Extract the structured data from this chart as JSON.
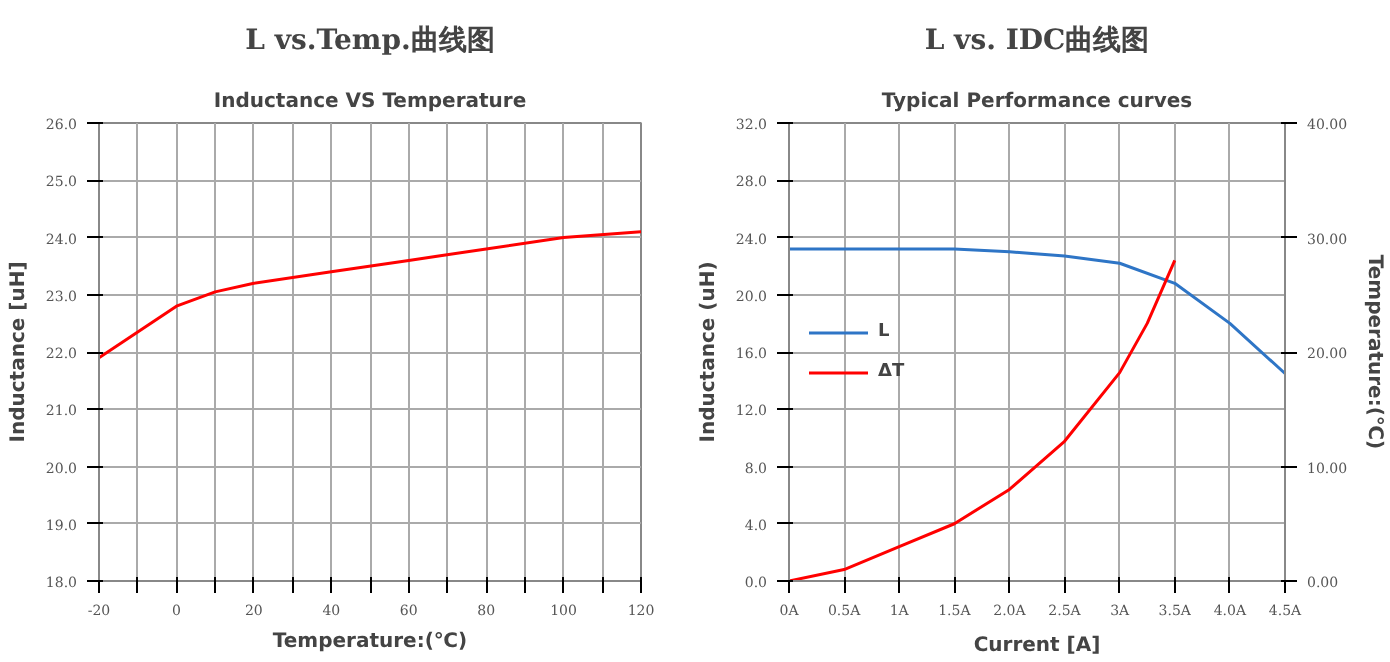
{
  "chart_data": [
    {
      "type": "line",
      "title": "Inductance VS Temperature",
      "annotations": [
        "L vs.Temp.曲线图"
      ],
      "xlabel": "Temperature:(℃)",
      "ylabel": "Inductance [uH]",
      "x": [
        -20,
        -10,
        0,
        10,
        20,
        40,
        60,
        80,
        100,
        120
      ],
      "series": [
        {
          "color": "#ff0000",
          "values": [
            21.9,
            22.35,
            22.8,
            23.05,
            23.2,
            23.4,
            23.6,
            23.8,
            24.0,
            24.1
          ]
        }
      ],
      "xlim": [
        -20,
        120
      ],
      "xticks": [
        -20,
        {
          "value": -10,
          "label": null
        },
        0,
        {
          "value": 10,
          "label": null
        },
        20,
        {
          "value": 30,
          "label": null
        },
        40,
        {
          "value": 50,
          "label": null
        },
        60,
        {
          "value": 70,
          "label": null
        },
        80,
        {
          "value": 90,
          "label": null
        },
        100,
        {
          "value": 110,
          "label": null
        },
        120
      ],
      "ylim": [
        18,
        26
      ],
      "yticks": [
        {
          "value": 18,
          "label": "18.0"
        },
        {
          "value": 19,
          "label": "19.0"
        },
        {
          "value": 20,
          "label": "20.0"
        },
        {
          "value": 21,
          "label": "21.0"
        },
        {
          "value": 22,
          "label": "22.0"
        },
        {
          "value": 23,
          "label": "23.0"
        },
        {
          "value": 24,
          "label": "24.0"
        },
        {
          "value": 25,
          "label": "25.0"
        },
        {
          "value": 26,
          "label": "26.0"
        }
      ],
      "grid": true
    },
    {
      "type": "line",
      "title": "Typical Performance curves",
      "annotations": [
        "L vs. IDC曲线图"
      ],
      "xlabel": "Current [A]",
      "ylabel": "Inductance (uH)",
      "y2label": "Temperature:(℃)",
      "x": [
        0,
        0.5,
        1,
        1.5,
        2,
        2.5,
        3,
        3.5,
        4,
        4.5
      ],
      "series": [
        {
          "name": "L",
          "color": "#2e75c6",
          "values": [
            23.2,
            23.2,
            23.2,
            23.2,
            23.0,
            22.7,
            22.2,
            20.8,
            18.0,
            14.5
          ]
        },
        {
          "name": "ΔT",
          "color": "#ff0000",
          "axis": "y2",
          "x": [
            0,
            0.5,
            1,
            1.5,
            2,
            2.5,
            3,
            3.25,
            3.5
          ],
          "values": [
            0,
            1.0,
            3.0,
            5.0,
            8.0,
            12.2,
            18.2,
            22.5,
            28.0
          ]
        }
      ],
      "xlim": [
        0,
        4.5
      ],
      "xticks": [
        {
          "value": 0,
          "label": "0A"
        },
        {
          "value": 0.5,
          "label": "0.5A"
        },
        {
          "value": 1,
          "label": "1A"
        },
        {
          "value": 1.5,
          "label": "1.5A"
        },
        {
          "value": 2,
          "label": "2.0A"
        },
        {
          "value": 2.5,
          "label": "2.5A"
        },
        {
          "value": 3,
          "label": "3A"
        },
        {
          "value": 3.5,
          "label": "3.5A"
        },
        {
          "value": 4,
          "label": "4.0A"
        },
        {
          "value": 4.5,
          "label": "4.5A"
        }
      ],
      "ylim": [
        0,
        32
      ],
      "yticks": [
        {
          "value": 0,
          "label": "0.0"
        },
        {
          "value": 4,
          "label": "4.0"
        },
        {
          "value": 8,
          "label": "8.0"
        },
        {
          "value": 12,
          "label": "12.0"
        },
        {
          "value": 16,
          "label": "16.0"
        },
        {
          "value": 20,
          "label": "20.0"
        },
        {
          "value": 24,
          "label": "24.0"
        },
        {
          "value": 28,
          "label": "28.0"
        },
        {
          "value": 32,
          "label": "32.0"
        }
      ],
      "y2lim": [
        0,
        40
      ],
      "y2ticks": [
        {
          "value": 0,
          "label": "0.00"
        },
        {
          "value": 10,
          "label": "10.00"
        },
        {
          "value": 20,
          "label": "20.00"
        },
        {
          "value": 30,
          "label": "30.00"
        },
        {
          "value": 40,
          "label": "40.00"
        }
      ],
      "grid": true,
      "legend": "left"
    }
  ]
}
